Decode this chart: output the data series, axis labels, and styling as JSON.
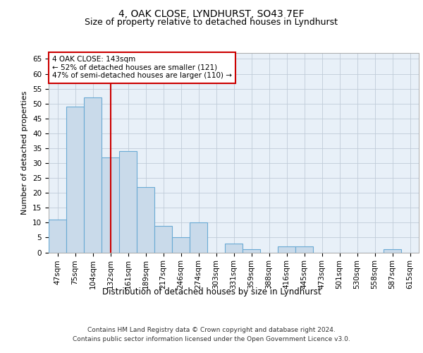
{
  "title1": "4, OAK CLOSE, LYNDHURST, SO43 7EF",
  "title2": "Size of property relative to detached houses in Lyndhurst",
  "xlabel": "Distribution of detached houses by size in Lyndhurst",
  "ylabel": "Number of detached properties",
  "categories": [
    "47sqm",
    "75sqm",
    "104sqm",
    "132sqm",
    "161sqm",
    "189sqm",
    "217sqm",
    "246sqm",
    "274sqm",
    "303sqm",
    "331sqm",
    "359sqm",
    "388sqm",
    "416sqm",
    "445sqm",
    "473sqm",
    "501sqm",
    "530sqm",
    "558sqm",
    "587sqm",
    "615sqm"
  ],
  "values": [
    11,
    49,
    52,
    32,
    34,
    22,
    9,
    5,
    10,
    0,
    3,
    1,
    0,
    2,
    2,
    0,
    0,
    0,
    0,
    1,
    0
  ],
  "bar_color": "#c9daea",
  "bar_edge_color": "#6aaad4",
  "vline_x": 3.0,
  "vline_color": "#cc0000",
  "annotation_text": "4 OAK CLOSE: 143sqm\n← 52% of detached houses are smaller (121)\n47% of semi-detached houses are larger (110) →",
  "annotation_box_color": "white",
  "annotation_box_edge_color": "#cc0000",
  "ylim": [
    0,
    67
  ],
  "yticks": [
    0,
    5,
    10,
    15,
    20,
    25,
    30,
    35,
    40,
    45,
    50,
    55,
    60,
    65
  ],
  "grid_color": "#c0ccd8",
  "background_color": "#e8f0f8",
  "footer1": "Contains HM Land Registry data © Crown copyright and database right 2024.",
  "footer2": "Contains public sector information licensed under the Open Government Licence v3.0.",
  "title1_fontsize": 10,
  "title2_fontsize": 9,
  "xlabel_fontsize": 8.5,
  "ylabel_fontsize": 8,
  "tick_fontsize": 7.5,
  "footer_fontsize": 6.5,
  "annot_fontsize": 7.5
}
